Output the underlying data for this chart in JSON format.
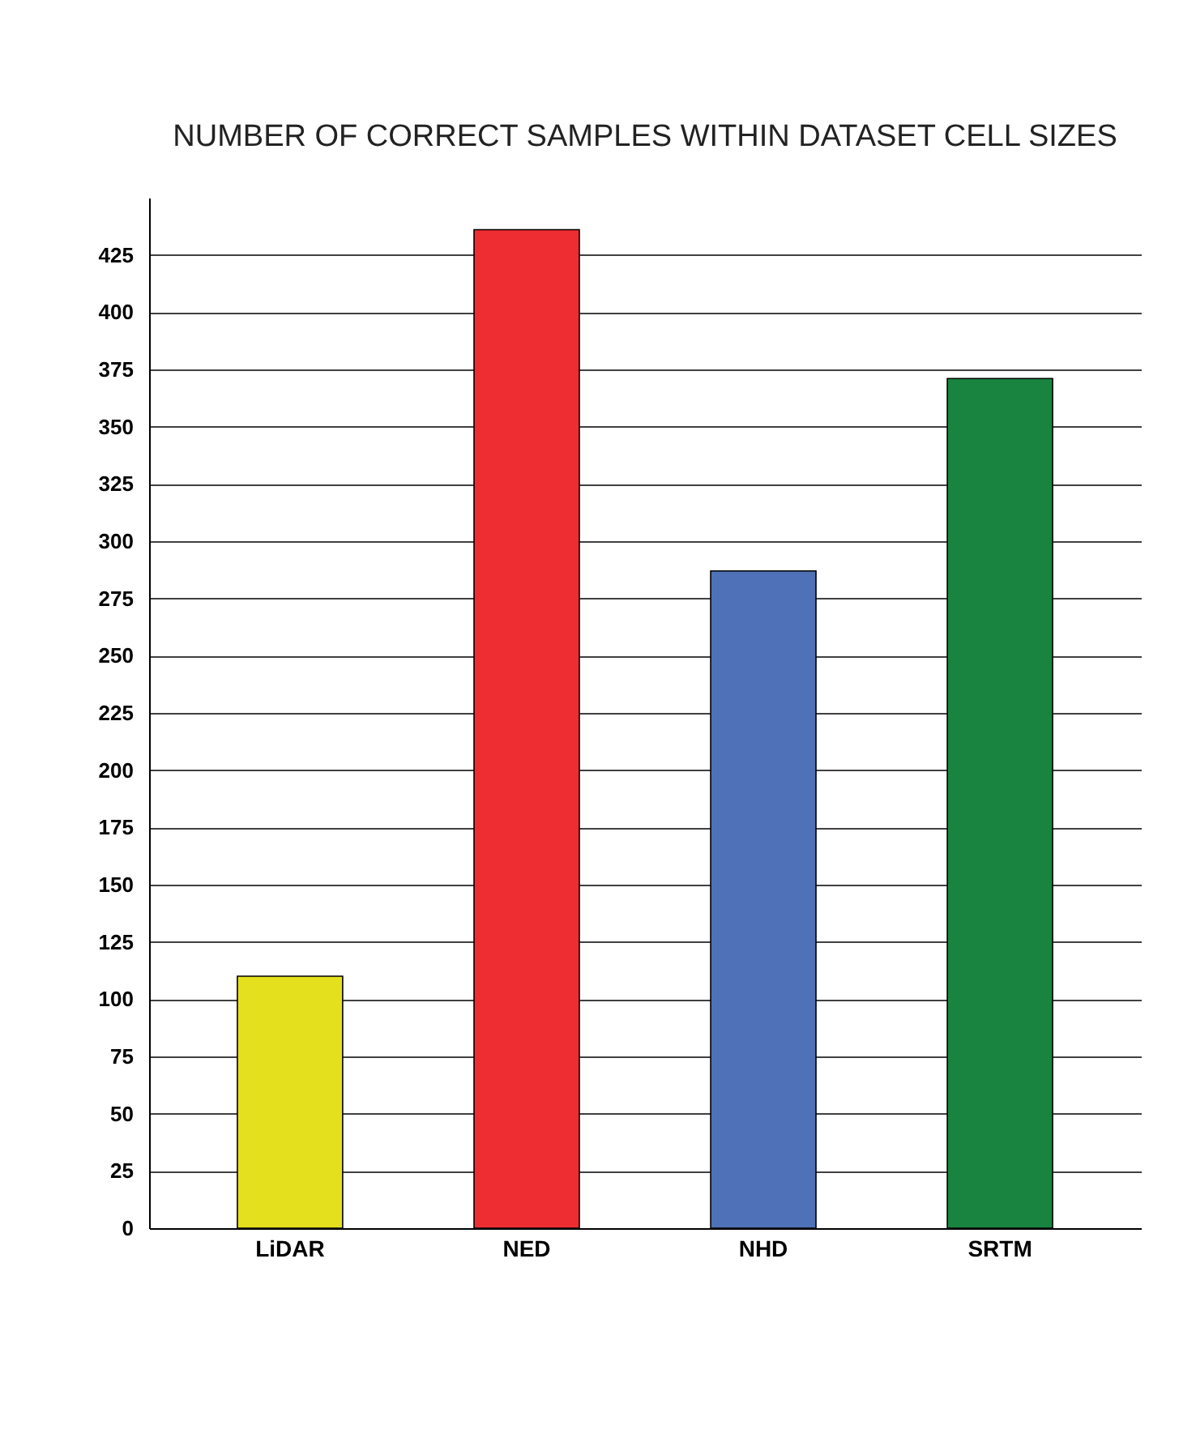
{
  "chart_data": {
    "type": "bar",
    "title": "NUMBER OF CORRECT SAMPLES WITHIN DATASET CELL SIZES",
    "categories": [
      "LiDAR",
      "NED",
      "NHD",
      "SRTM"
    ],
    "values": [
      110,
      436,
      287,
      371
    ],
    "colors": [
      "#e5e01e",
      "#ee2d32",
      "#4f71b8",
      "#19843f"
    ],
    "ylim": [
      0,
      450
    ],
    "yticks": [
      0,
      25,
      50,
      75,
      100,
      125,
      150,
      175,
      200,
      225,
      250,
      275,
      300,
      325,
      350,
      375,
      400,
      425
    ],
    "grid": "y"
  }
}
